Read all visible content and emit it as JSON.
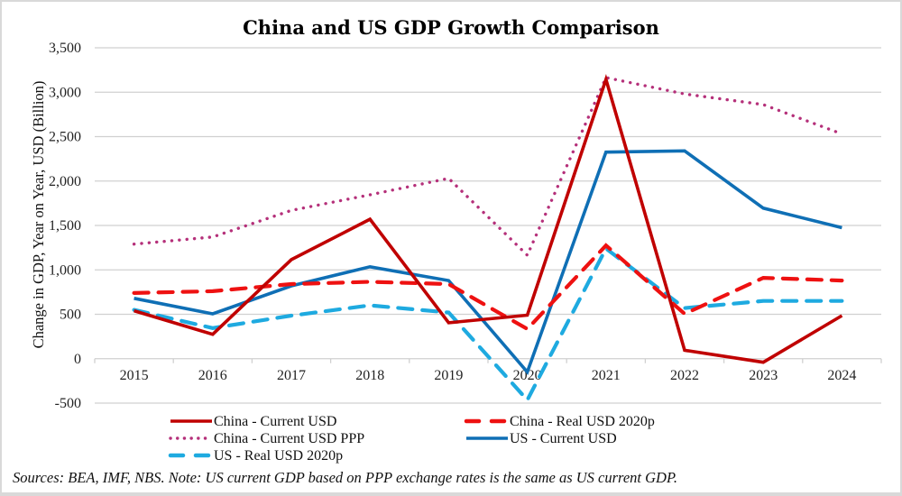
{
  "chart_data": {
    "type": "line",
    "title": "China and US GDP Growth Comparison",
    "xlabel": "",
    "ylabel": "Change in GDP, Year on Year, USD (Billion)",
    "ylim": [
      -500,
      3500
    ],
    "ytick_step": 500,
    "yticks": [
      "-500",
      "0",
      "500",
      "1,000",
      "1,500",
      "2,000",
      "2,500",
      "3,000",
      "3,500"
    ],
    "categories": [
      "2015",
      "2016",
      "2017",
      "2018",
      "2019",
      "2020",
      "2021",
      "2022",
      "2023",
      "2024"
    ],
    "grid": true,
    "legend_position": "bottom",
    "series": [
      {
        "name": "China - Current USD",
        "style": "solid",
        "color": "#c00000",
        "values": [
          540,
          275,
          1115,
          1570,
          405,
          490,
          3145,
          95,
          -40,
          485
        ]
      },
      {
        "name": "China - Real USD 2020p",
        "style": "dashed",
        "color": "#ee1111",
        "values": [
          740,
          760,
          840,
          865,
          840,
          335,
          1275,
          505,
          910,
          880
        ]
      },
      {
        "name": "China - Current USD PPP",
        "style": "dotted",
        "color": "#b5307a",
        "values": [
          1290,
          1370,
          1670,
          1845,
          2030,
          1165,
          3165,
          2980,
          2860,
          2530
        ]
      },
      {
        "name": "US - Current USD",
        "style": "solid",
        "color": "#0f6fb5",
        "values": [
          680,
          505,
          820,
          1035,
          880,
          -150,
          2325,
          2340,
          1695,
          1475
        ]
      },
      {
        "name": "US - Real USD 2020p",
        "style": "dashed",
        "color": "#1eaae0",
        "values": [
          550,
          345,
          485,
          600,
          520,
          -465,
          1240,
          570,
          650,
          650
        ]
      }
    ],
    "note": "Sources: BEA, IMF, NBS. Note: US current GDP based on PPP exchange rates is the same as US current GDP."
  }
}
